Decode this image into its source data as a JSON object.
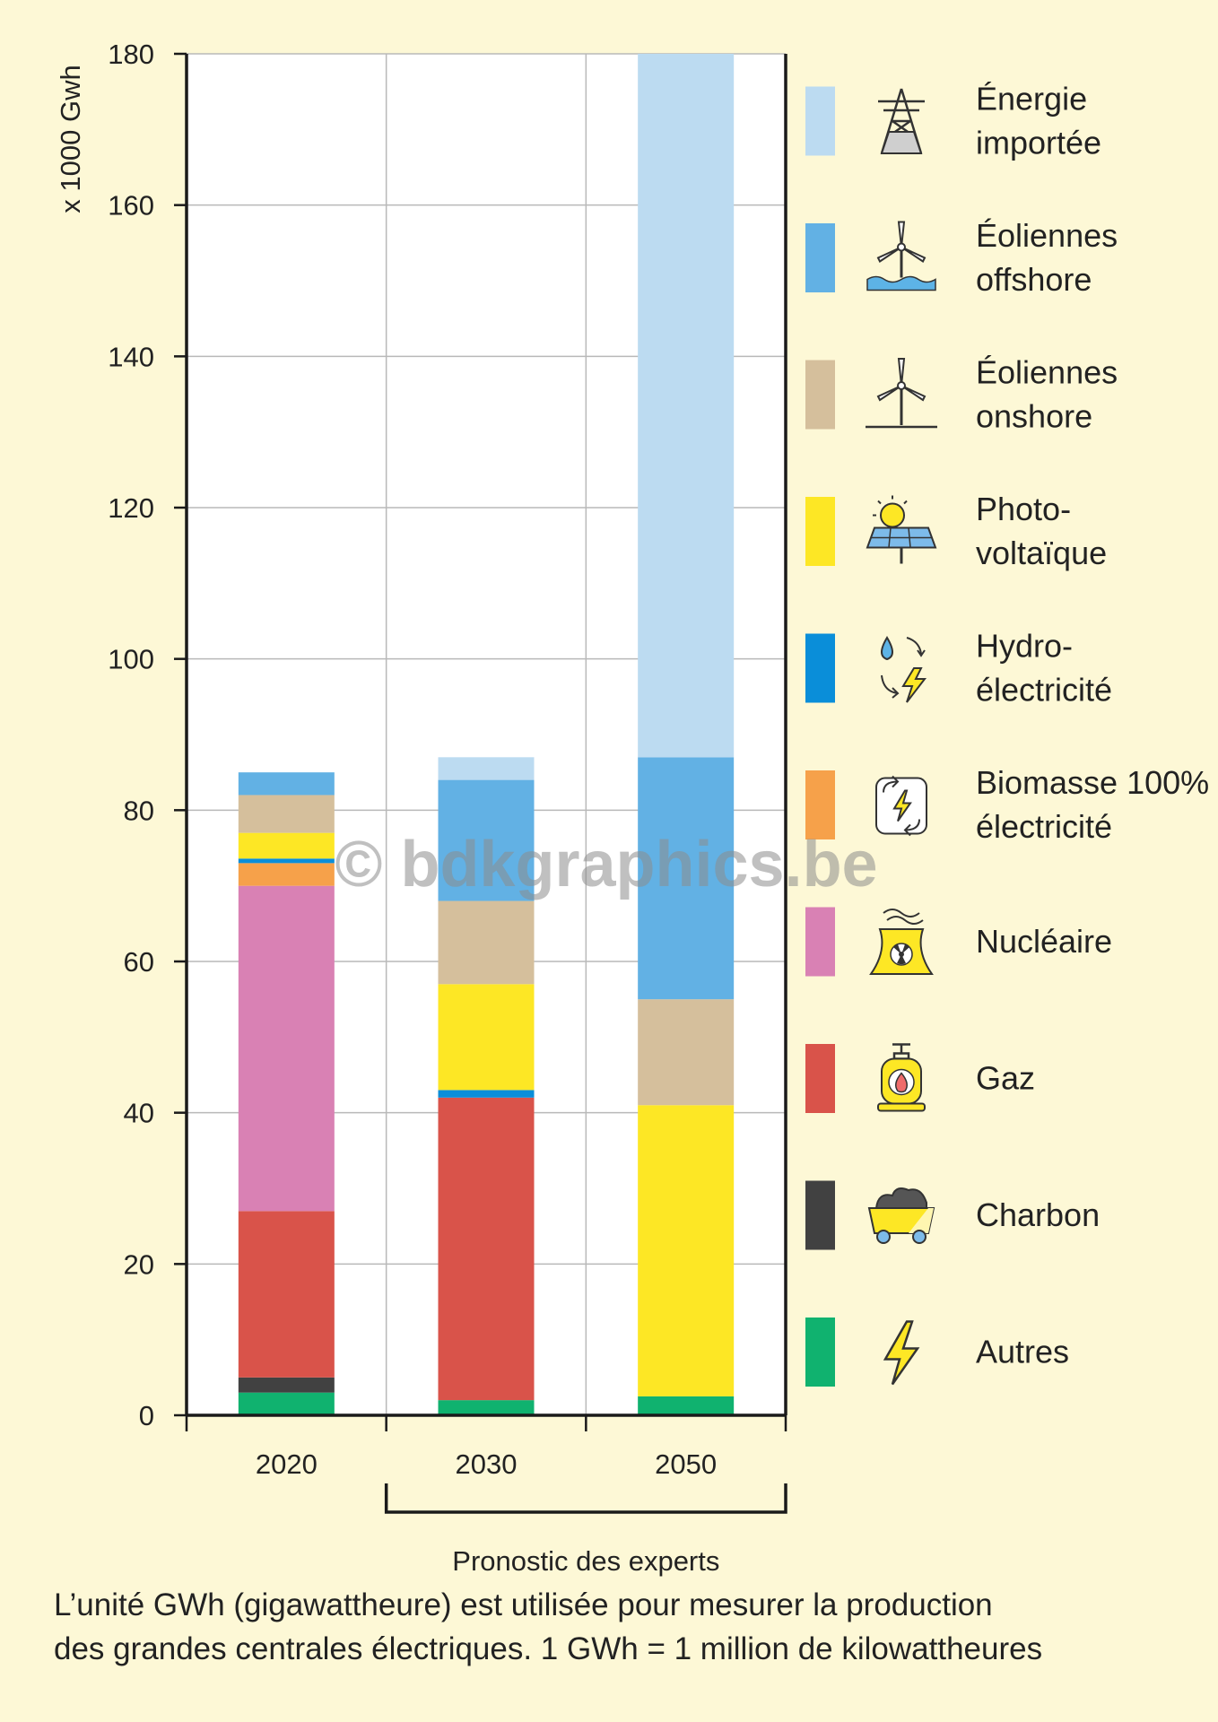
{
  "chart_data": {
    "type": "bar",
    "stacked": true,
    "ylabel": "x 1000 Gwh",
    "ylim": [
      0,
      180
    ],
    "yticks": [
      0,
      20,
      40,
      60,
      80,
      100,
      120,
      140,
      160,
      180
    ],
    "grid": true,
    "legend_position": "right",
    "categories": [
      "2020",
      "2030",
      "2050"
    ],
    "forecast_label": "Pronostic des experts",
    "forecast_categories": [
      "2030",
      "2050"
    ],
    "series": [
      {
        "name": "Autres",
        "color": "#10b26f",
        "icon": "lightning-icon",
        "values": [
          3,
          2,
          2.5
        ]
      },
      {
        "name": "Charbon",
        "color": "#414141",
        "icon": "coal-cart-icon",
        "values": [
          2,
          0,
          0
        ]
      },
      {
        "name": "Gaz",
        "color": "#d9534a",
        "icon": "gas-cylinder-icon",
        "values": [
          22,
          40,
          0
        ]
      },
      {
        "name": "Nucléaire",
        "color": "#d981b4",
        "icon": "nuclear-plant-icon",
        "values": [
          43,
          0,
          0
        ]
      },
      {
        "name": "Biomasse 100% électricité",
        "color": "#f6a14a",
        "icon": "biomass-cycle-icon",
        "values": [
          3,
          0,
          0
        ]
      },
      {
        "name": "Hydro-électricité",
        "color": "#0a8ed9",
        "icon": "hydro-icon",
        "values": [
          0.6,
          1,
          0
        ]
      },
      {
        "name": "Photo-voltaïque",
        "color": "#fde725",
        "icon": "solar-panel-icon",
        "values": [
          3.4,
          14,
          38.5
        ]
      },
      {
        "name": "Éoliennes onshore",
        "color": "#d5bf9c",
        "icon": "wind-turbine-icon",
        "values": [
          5,
          11,
          14
        ]
      },
      {
        "name": "Éoliennes offshore",
        "color": "#62b1e4",
        "icon": "offshore-wind-icon",
        "values": [
          3,
          16,
          32
        ]
      },
      {
        "name": "Énergie importée",
        "color": "#bcdbf1",
        "icon": "power-pylon-icon",
        "values": [
          0,
          3,
          93
        ]
      }
    ],
    "legend": [
      {
        "series": "Énergie importée",
        "lines": [
          "Énergie",
          "importée"
        ]
      },
      {
        "series": "Éoliennes offshore",
        "lines": [
          "Éoliennes",
          "offshore"
        ]
      },
      {
        "series": "Éoliennes onshore",
        "lines": [
          "Éoliennes",
          "onshore"
        ]
      },
      {
        "series": "Photo-voltaïque",
        "lines": [
          "Photo-",
          "voltaïque"
        ]
      },
      {
        "series": "Hydro-électricité",
        "lines": [
          "Hydro-",
          "électricité"
        ]
      },
      {
        "series": "Biomasse 100% électricité",
        "lines": [
          "Biomasse 100%",
          "électricité"
        ]
      },
      {
        "series": "Nucléaire",
        "lines": [
          "Nucléaire"
        ]
      },
      {
        "series": "Gaz",
        "lines": [
          "Gaz"
        ]
      },
      {
        "series": "Charbon",
        "lines": [
          "Charbon"
        ]
      },
      {
        "series": "Autres",
        "lines": [
          "Autres"
        ]
      }
    ],
    "watermark": "© bdkgraphics.be"
  },
  "footnote": {
    "line1": "L’unité GWh (gigawattheure) est utilisée pour mesurer la production",
    "line2": "des grandes centrales électriques. 1 GWh = 1 million de kilowattheures"
  }
}
